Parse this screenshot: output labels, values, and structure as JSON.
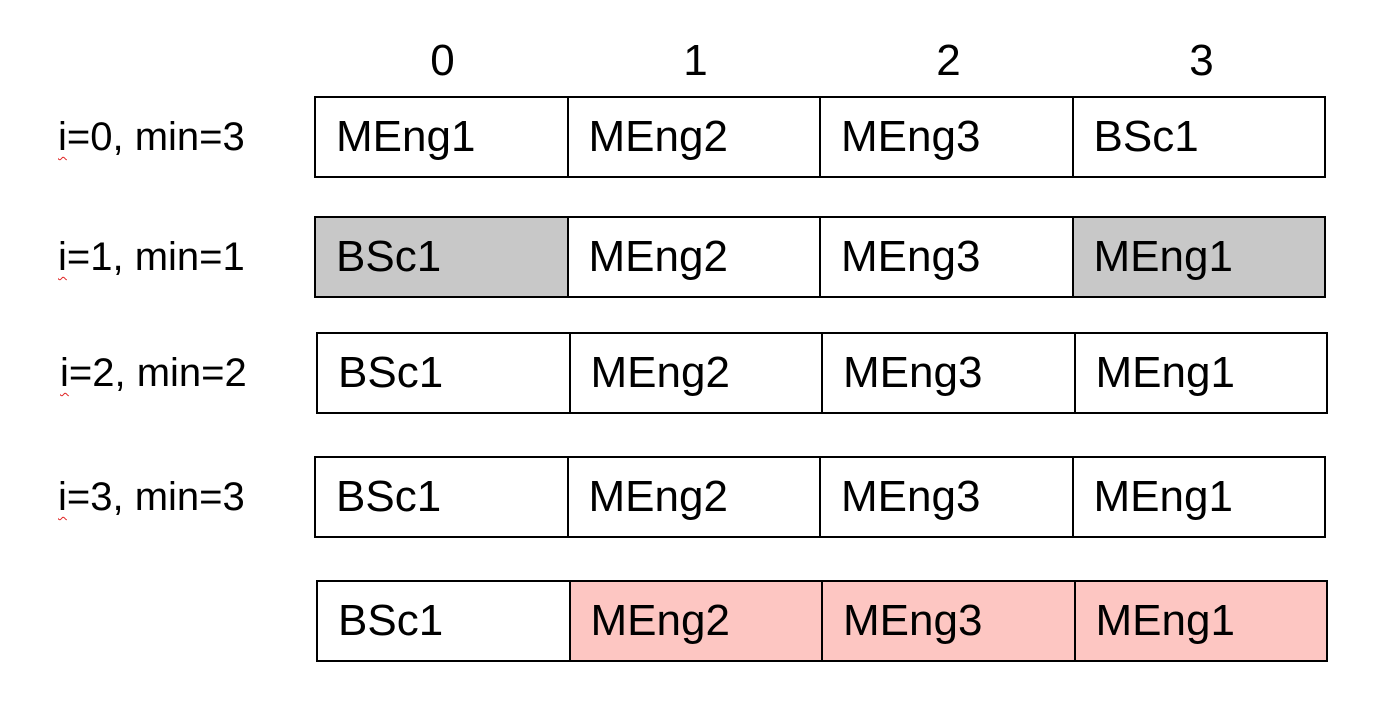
{
  "indices": [
    "0",
    "1",
    "2",
    "3"
  ],
  "rows": [
    {
      "label_var": "i",
      "label_rest": "=0, min=3",
      "cells": [
        {
          "text": "MEng1",
          "state": "normal"
        },
        {
          "text": "MEng2",
          "state": "normal"
        },
        {
          "text": "MEng3",
          "state": "normal"
        },
        {
          "text": "BSc1",
          "state": "normal"
        }
      ]
    },
    {
      "label_var": "i",
      "label_rest": "=1, min=1",
      "cells": [
        {
          "text": "BSc1",
          "state": "swapped"
        },
        {
          "text": "MEng2",
          "state": "normal"
        },
        {
          "text": "MEng3",
          "state": "normal"
        },
        {
          "text": "MEng1",
          "state": "swapped"
        }
      ]
    },
    {
      "label_var": "i",
      "label_rest": "=2, min=2",
      "cells": [
        {
          "text": "BSc1",
          "state": "normal"
        },
        {
          "text": "MEng2",
          "state": "normal"
        },
        {
          "text": "MEng3",
          "state": "normal"
        },
        {
          "text": "MEng1",
          "state": "normal"
        }
      ]
    },
    {
      "label_var": "i",
      "label_rest": "=3, min=3",
      "cells": [
        {
          "text": "BSc1",
          "state": "normal"
        },
        {
          "text": "MEng2",
          "state": "normal"
        },
        {
          "text": "MEng3",
          "state": "normal"
        },
        {
          "text": "MEng1",
          "state": "normal"
        }
      ]
    },
    {
      "label_var": "",
      "label_rest": "",
      "cells": [
        {
          "text": "BSc1",
          "state": "normal"
        },
        {
          "text": "MEng2",
          "state": "sorted"
        },
        {
          "text": "MEng3",
          "state": "sorted"
        },
        {
          "text": "MEng1",
          "state": "sorted"
        }
      ]
    }
  ],
  "colors": {
    "swapped": "#c8c8c8",
    "sorted": "#fdc6c2",
    "spellcheck_underline": "#e02020"
  }
}
